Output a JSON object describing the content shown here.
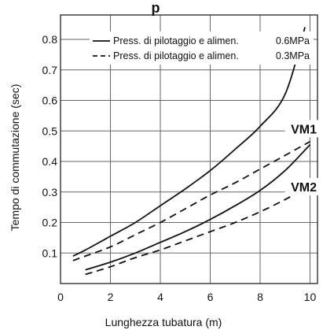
{
  "chart_data": {
    "type": "line",
    "title": "",
    "xlabel": "Lunghezza tubatura  (m)",
    "ylabel": "Tempo di commutazione (sec)",
    "xlim": [
      0,
      10.3
    ],
    "ylim": [
      0,
      0.88
    ],
    "x_ticks": [
      "0",
      "2",
      "4",
      "6",
      "8",
      "10"
    ],
    "y_ticks": [
      "0.1",
      "0.2",
      "0.3",
      "0.4",
      "0.5",
      "0.6",
      "0.7",
      "0.8"
    ],
    "grid": true,
    "legend": {
      "position": "top-right",
      "entries": [
        {
          "label": "Press. di pilotaggio e alimen.",
          "unit": "0.6MPa",
          "dash": "solid"
        },
        {
          "label": "Press. di pilotaggio e alimen.",
          "unit": "0.3MPa",
          "dash": "dashed"
        }
      ]
    },
    "curve_labels": [
      {
        "text": "VM1",
        "x": 9.75,
        "y": 0.505
      },
      {
        "text": "VM2",
        "x": 9.75,
        "y": 0.315
      }
    ],
    "series": [
      {
        "dash": "solid",
        "x": [
          0.5,
          1,
          2,
          3,
          4,
          5,
          6,
          7,
          8,
          9,
          9.8
        ],
        "y": [
          0.09,
          0.11,
          0.155,
          0.2,
          0.255,
          0.31,
          0.37,
          0.44,
          0.515,
          0.62,
          0.84
        ]
      },
      {
        "dash": "dashed",
        "x": [
          0.5,
          1,
          2,
          3,
          4,
          5,
          6,
          7,
          8,
          9,
          10
        ],
        "y": [
          0.075,
          0.09,
          0.12,
          0.16,
          0.2,
          0.245,
          0.29,
          0.33,
          0.375,
          0.42,
          0.465
        ]
      },
      {
        "dash": "solid",
        "x": [
          1,
          2,
          3,
          4,
          5,
          6,
          7,
          8,
          9,
          10
        ],
        "y": [
          0.045,
          0.07,
          0.1,
          0.135,
          0.17,
          0.21,
          0.255,
          0.305,
          0.37,
          0.455
        ]
      },
      {
        "dash": "dashed",
        "x": [
          1,
          2,
          3,
          4,
          5,
          6,
          7,
          8,
          9,
          10
        ],
        "y": [
          0.03,
          0.055,
          0.085,
          0.11,
          0.14,
          0.17,
          0.2,
          0.235,
          0.275,
          0.32
        ]
      }
    ],
    "title_fragment": "p"
  }
}
